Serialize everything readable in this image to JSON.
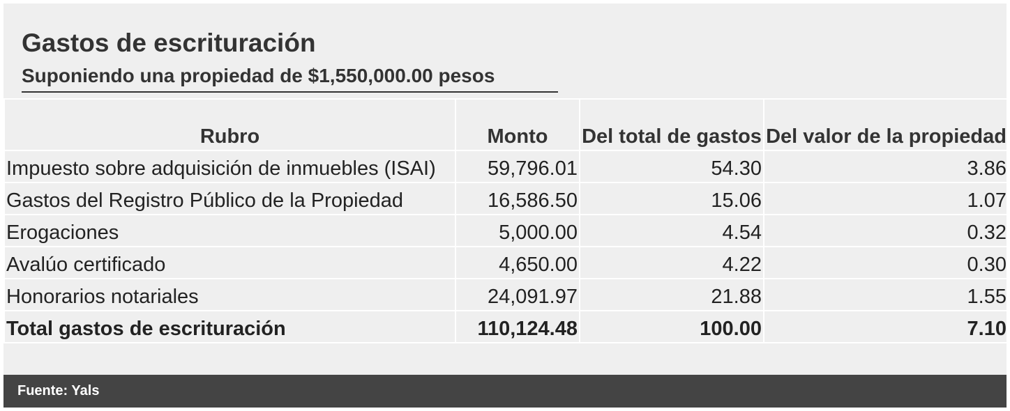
{
  "header": {
    "title": "Gastos de escrituración",
    "subtitle": "Suponiendo una propiedad de $1,550,000.00 pesos"
  },
  "table": {
    "columns": [
      "Rubro",
      "Monto",
      "Del total de gastos",
      "Del valor de la propiedad"
    ],
    "rows": [
      [
        "Impuesto sobre adquisición de inmuebles (ISAI)",
        "59,796.01",
        "54.30",
        "3.86"
      ],
      [
        "Gastos del Registro Público de la Propiedad",
        "16,586.50",
        "15.06",
        "1.07"
      ],
      [
        "Erogaciones",
        "5,000.00",
        "4.54",
        "0.32"
      ],
      [
        "Avalúo certificado",
        "4,650.00",
        "4.22",
        "0.30"
      ],
      [
        "Honorarios notariales",
        "24,091.97",
        "21.88",
        "1.55"
      ]
    ],
    "total": [
      "Total gastos de escrituración",
      "110,124.48",
      "100.00",
      "7.10"
    ]
  },
  "footer": {
    "source": "Fuente: Yals"
  }
}
